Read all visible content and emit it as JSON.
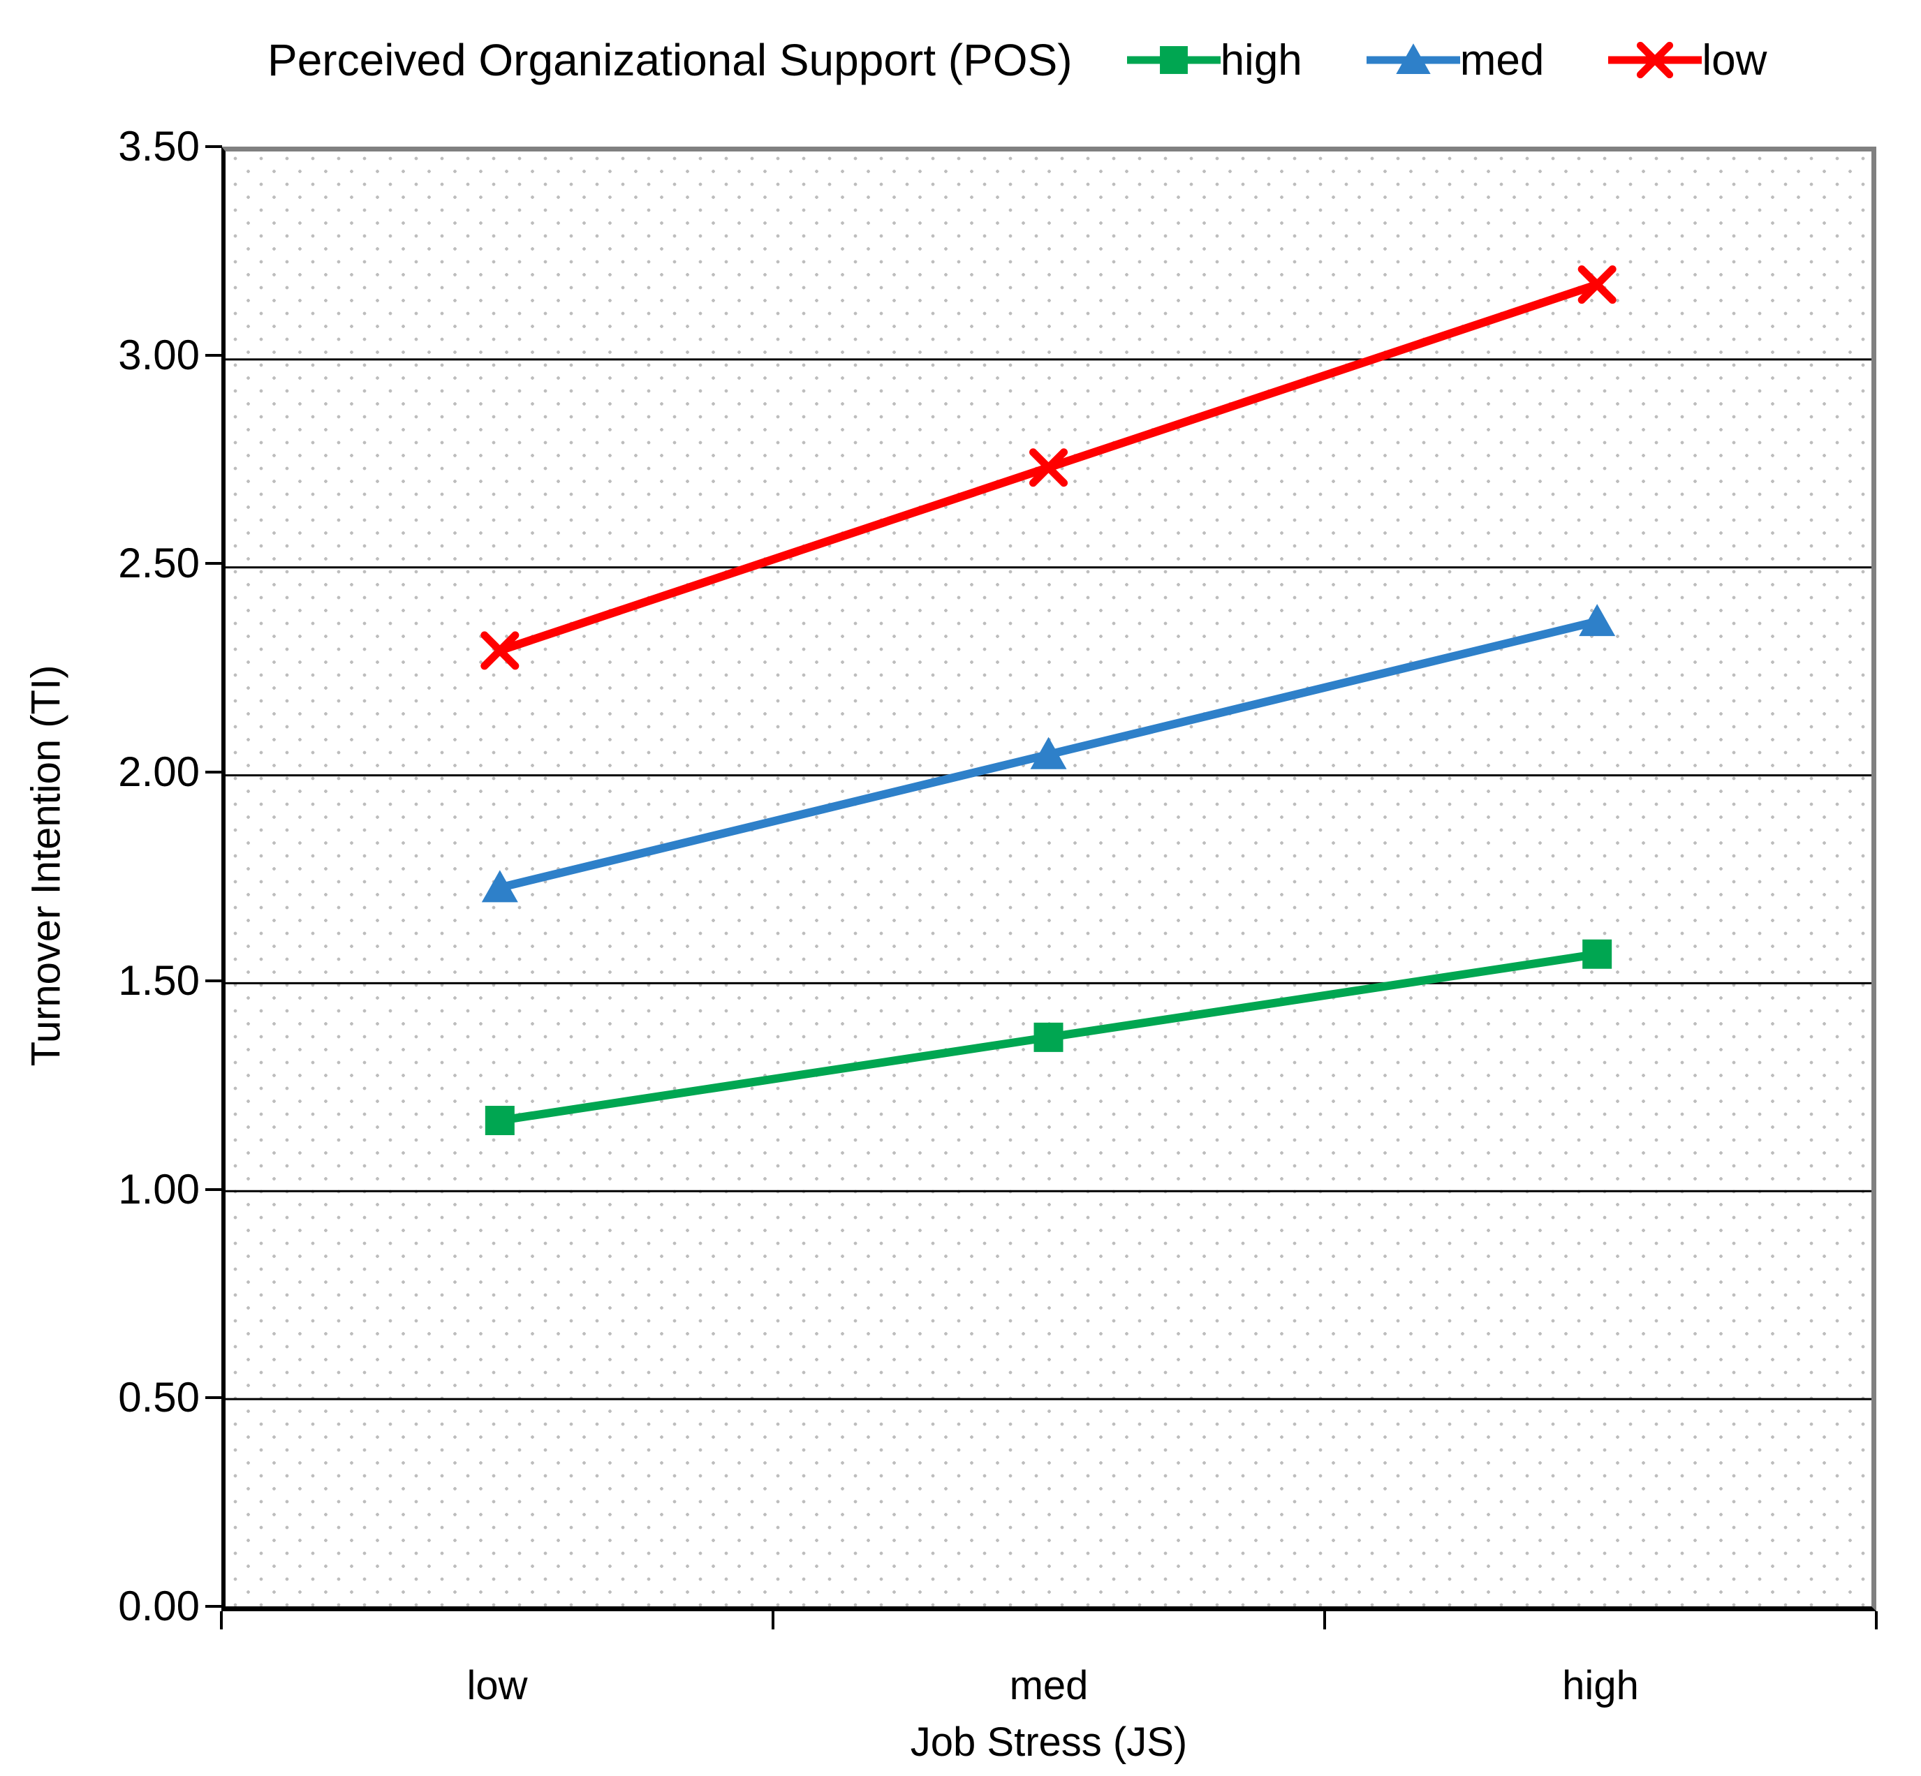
{
  "chart_data": {
    "type": "line",
    "legend_title": "Perceived Organizational Support (POS)",
    "legend_position": "top",
    "categories": [
      "low",
      "med",
      "high"
    ],
    "series": [
      {
        "name": "high",
        "marker": "square",
        "color": "#00A651",
        "values": [
          1.17,
          1.37,
          1.57
        ]
      },
      {
        "name": "med",
        "marker": "triangle",
        "color": "#2E80C9",
        "values": [
          1.73,
          2.05,
          2.37
        ]
      },
      {
        "name": "low",
        "marker": "x",
        "color": "#FF0000",
        "values": [
          2.3,
          2.74,
          3.18
        ]
      }
    ],
    "xlabel": "Job Stress (JS)",
    "ylabel": "Turnover Intention (TI)",
    "ylim": [
      0,
      3.5
    ],
    "ytick_step": 0.5,
    "ytick_labels": [
      "0.00",
      "0.50",
      "1.00",
      "1.50",
      "2.00",
      "2.50",
      "3.00",
      "3.50"
    ],
    "grid": "horizontal",
    "colors": {
      "gridline": "#000000",
      "plot_border": "#808080",
      "background_dots": "#BDBDBD",
      "text": "#000000"
    }
  }
}
